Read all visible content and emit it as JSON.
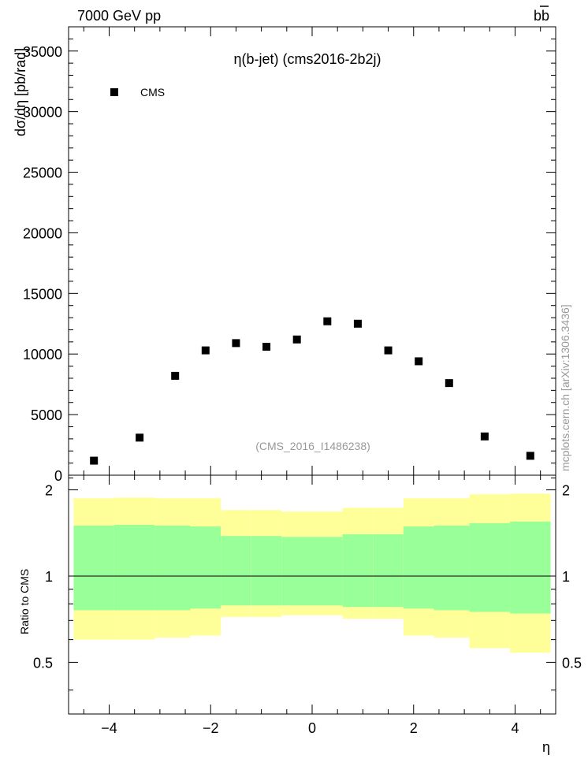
{
  "header": {
    "left": "7000 GeV pp",
    "right": "bb",
    "right_bar": "̄"
  },
  "watermark": "mcplots.cern.ch [arXiv:1306.3436]",
  "chart_data": [
    {
      "type": "scatter",
      "title": "η(b-jet) (cms2016-2b2j)",
      "analysis_label": "(CMS_2016_I1486238)",
      "xlabel": "η",
      "ylabel": "dσ/dη [pb/rad]",
      "xlim": [
        -4.8,
        4.8
      ],
      "ylim": [
        0,
        37000
      ],
      "x_ticks": [
        -4,
        -2,
        0,
        2,
        4
      ],
      "y_ticks": [
        0,
        5000,
        10000,
        15000,
        20000,
        25000,
        30000,
        35000
      ],
      "y_tick_labels": [
        "0",
        "5000",
        "10000",
        "15000",
        "20000",
        "25000",
        "30000",
        "35000"
      ],
      "legend": [
        {
          "name": "CMS",
          "marker": "square",
          "color": "#000000"
        }
      ],
      "series": [
        {
          "name": "CMS",
          "x": [
            -4.3,
            -3.4,
            -2.7,
            -2.1,
            -1.5,
            -0.9,
            -0.3,
            0.3,
            0.9,
            1.5,
            2.1,
            2.7,
            3.4,
            4.3
          ],
          "y": [
            1200,
            3100,
            8200,
            10300,
            10900,
            10600,
            11200,
            12700,
            12500,
            10300,
            9400,
            7600,
            3200,
            1600
          ]
        }
      ]
    },
    {
      "type": "area",
      "ylabel": "Ratio to CMS",
      "xlim": [
        -4.8,
        4.8
      ],
      "ylim": [
        0.33,
        2.25
      ],
      "y_ticks": [
        0.5,
        1,
        2
      ],
      "y_tick_labels": [
        "0.5",
        "1",
        "2"
      ],
      "reference_line": 1,
      "band_colors": {
        "outer": "#ffff99",
        "inner": "#99ff99"
      },
      "bins": [
        {
          "lo": -4.7,
          "hi": -3.9,
          "outer_lo": 0.6,
          "outer_hi": 1.87,
          "inner_lo": 0.76,
          "inner_hi": 1.5
        },
        {
          "lo": -3.9,
          "hi": -3.1,
          "outer_lo": 0.6,
          "outer_hi": 1.88,
          "inner_lo": 0.76,
          "inner_hi": 1.51
        },
        {
          "lo": -3.1,
          "hi": -2.4,
          "outer_lo": 0.61,
          "outer_hi": 1.87,
          "inner_lo": 0.76,
          "inner_hi": 1.5
        },
        {
          "lo": -2.4,
          "hi": -1.8,
          "outer_lo": 0.62,
          "outer_hi": 1.87,
          "inner_lo": 0.77,
          "inner_hi": 1.49
        },
        {
          "lo": -1.8,
          "hi": -1.2,
          "outer_lo": 0.72,
          "outer_hi": 1.7,
          "inner_lo": 0.79,
          "inner_hi": 1.38
        },
        {
          "lo": -1.2,
          "hi": -0.6,
          "outer_lo": 0.72,
          "outer_hi": 1.7,
          "inner_lo": 0.79,
          "inner_hi": 1.38
        },
        {
          "lo": -0.6,
          "hi": 0.0,
          "outer_lo": 0.73,
          "outer_hi": 1.68,
          "inner_lo": 0.79,
          "inner_hi": 1.37
        },
        {
          "lo": 0.0,
          "hi": 0.6,
          "outer_lo": 0.73,
          "outer_hi": 1.68,
          "inner_lo": 0.79,
          "inner_hi": 1.37
        },
        {
          "lo": 0.6,
          "hi": 1.2,
          "outer_lo": 0.71,
          "outer_hi": 1.73,
          "inner_lo": 0.78,
          "inner_hi": 1.4
        },
        {
          "lo": 1.2,
          "hi": 1.8,
          "outer_lo": 0.71,
          "outer_hi": 1.73,
          "inner_lo": 0.78,
          "inner_hi": 1.4
        },
        {
          "lo": 1.8,
          "hi": 2.4,
          "outer_lo": 0.62,
          "outer_hi": 1.87,
          "inner_lo": 0.77,
          "inner_hi": 1.49
        },
        {
          "lo": 2.4,
          "hi": 3.1,
          "outer_lo": 0.61,
          "outer_hi": 1.87,
          "inner_lo": 0.76,
          "inner_hi": 1.5
        },
        {
          "lo": 3.1,
          "hi": 3.9,
          "outer_lo": 0.56,
          "outer_hi": 1.93,
          "inner_lo": 0.75,
          "inner_hi": 1.53
        },
        {
          "lo": 3.9,
          "hi": 4.7,
          "outer_lo": 0.54,
          "outer_hi": 1.94,
          "inner_lo": 0.74,
          "inner_hi": 1.55
        }
      ]
    }
  ]
}
